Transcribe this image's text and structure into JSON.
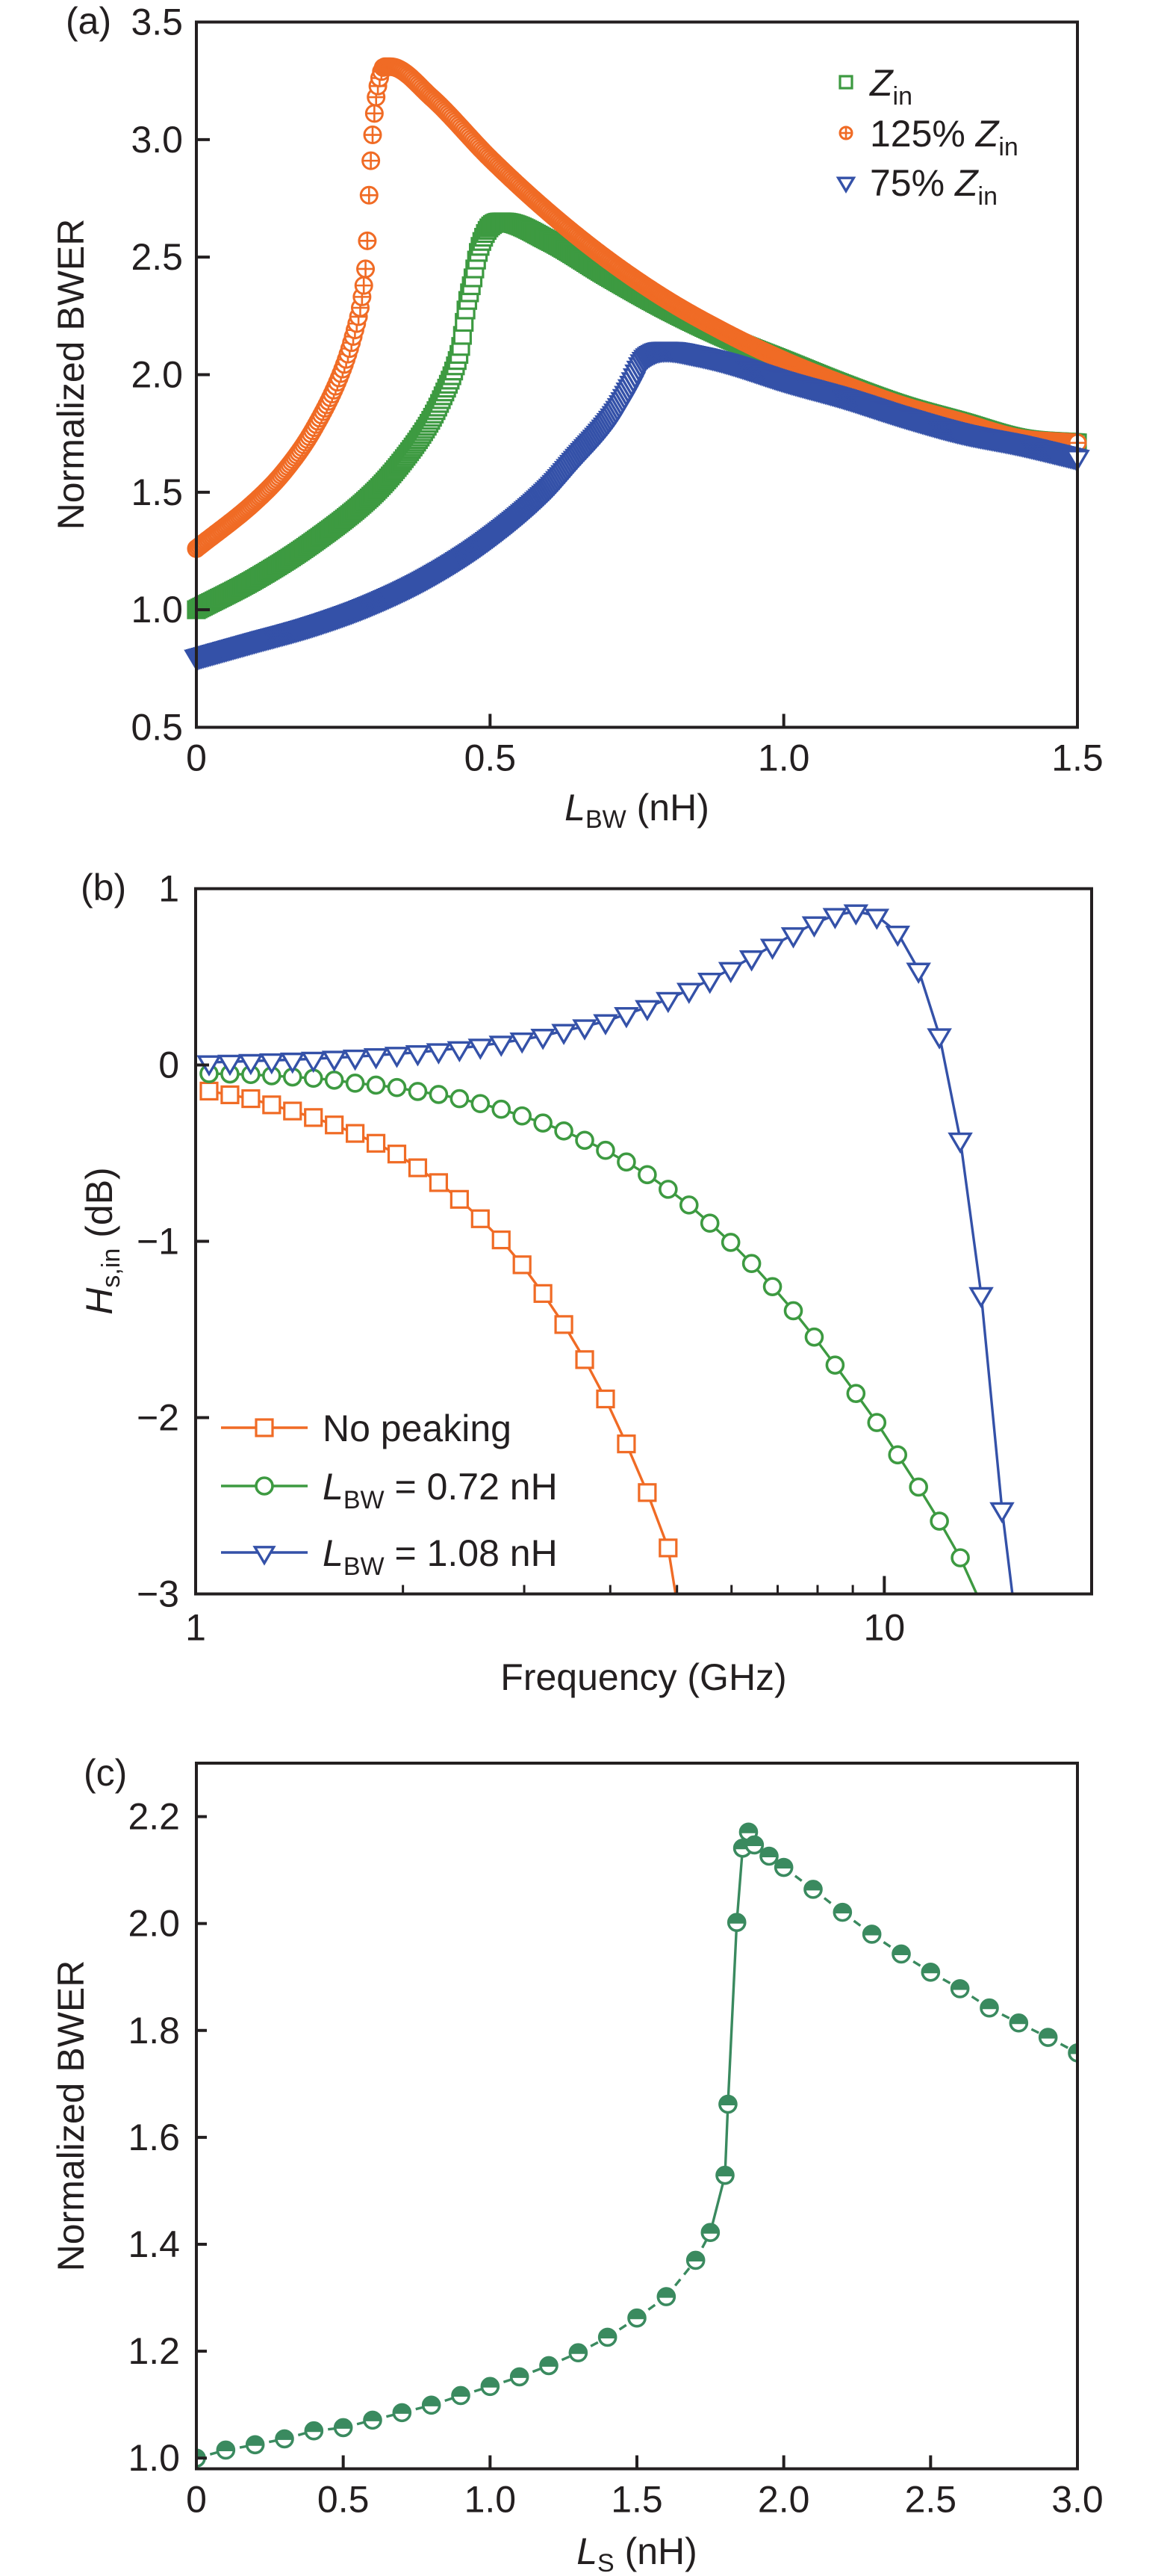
{
  "figure": {
    "panels": [
      "(a)",
      "(b)",
      "(c)"
    ]
  },
  "chart_data": [
    {
      "id": "a",
      "type": "scatter",
      "panel_label": "(a)",
      "title": "",
      "xlabel": {
        "main": "L",
        "sub": "BW",
        "unit": " (nH)"
      },
      "ylabel": "Normalized BWER",
      "xlim": [
        0,
        1.5
      ],
      "ylim": [
        0.5,
        3.5
      ],
      "xticks": [
        0,
        0.5,
        1.0,
        1.5
      ],
      "xtick_labels": [
        "0",
        "0.5",
        "1.0",
        "1.5"
      ],
      "yticks": [
        0.5,
        1.0,
        1.5,
        2.0,
        2.5,
        3.0,
        3.5
      ],
      "ytick_labels": [
        "0.5",
        "1.0",
        "1.5",
        "2.0",
        "2.5",
        "3.0",
        "3.5"
      ],
      "grid": false,
      "legend_position": "top-right",
      "series": [
        {
          "name": "Z_in",
          "legend": {
            "pre": "",
            "main": "Z",
            "sub": "in"
          },
          "marker": "square-open",
          "color": "#3d9a41",
          "x": [
            0,
            0.1,
            0.2,
            0.3,
            0.35,
            0.4,
            0.42,
            0.44,
            0.45,
            0.46,
            0.47,
            0.48,
            0.49,
            0.5,
            0.52,
            0.6,
            0.7,
            0.8,
            0.9,
            1.0,
            1.1,
            1.2,
            1.3,
            1.4,
            1.5
          ],
          "y": [
            1.0,
            1.13,
            1.29,
            1.49,
            1.63,
            1.81,
            1.91,
            2.03,
            2.12,
            2.29,
            2.4,
            2.52,
            2.59,
            2.63,
            2.65,
            2.57,
            2.42,
            2.28,
            2.16,
            2.06,
            1.96,
            1.87,
            1.8,
            1.73,
            1.71
          ]
        },
        {
          "name": "125% Z_in",
          "legend": {
            "pre": "125% ",
            "main": "Z",
            "sub": "in"
          },
          "marker": "circle-plus",
          "color": "#f06b25",
          "x": [
            0,
            0.1,
            0.15,
            0.2,
            0.25,
            0.27,
            0.28,
            0.29,
            0.295,
            0.3,
            0.305,
            0.31,
            0.32,
            0.33,
            0.4,
            0.5,
            0.6,
            0.7,
            0.8,
            0.9,
            1.0,
            1.1,
            1.2,
            1.3,
            1.4,
            1.5
          ],
          "y": [
            1.26,
            1.46,
            1.59,
            1.77,
            2.03,
            2.19,
            2.3,
            2.52,
            2.82,
            3.02,
            3.16,
            3.24,
            3.31,
            3.31,
            3.18,
            2.92,
            2.69,
            2.49,
            2.32,
            2.18,
            2.06,
            1.96,
            1.87,
            1.8,
            1.73,
            1.71
          ]
        },
        {
          "name": "75% Z_in",
          "legend": {
            "pre": "75% ",
            "main": "Z",
            "sub": "in"
          },
          "marker": "triangle-down-open",
          "color": "#3451a8",
          "x": [
            0,
            0.1,
            0.2,
            0.3,
            0.4,
            0.5,
            0.6,
            0.65,
            0.7,
            0.72,
            0.74,
            0.76,
            0.78,
            0.8,
            0.85,
            0.9,
            1.0,
            1.1,
            1.2,
            1.3,
            1.4,
            1.5
          ],
          "y": [
            0.8,
            0.87,
            0.94,
            1.03,
            1.15,
            1.31,
            1.52,
            1.66,
            1.8,
            1.87,
            1.96,
            2.06,
            2.1,
            2.11,
            2.09,
            2.06,
            1.98,
            1.91,
            1.83,
            1.76,
            1.71,
            1.65
          ]
        }
      ]
    },
    {
      "id": "b",
      "type": "line",
      "panel_label": "(b)",
      "title": "",
      "xlabel": "Frequency (GHz)",
      "ylabel": {
        "main": "H",
        "sub": "s,in",
        "unit": " (dB)"
      },
      "xscale": "log",
      "xlim": [
        1,
        20
      ],
      "ylim": [
        -3,
        1
      ],
      "xticks": [
        1,
        10
      ],
      "xtick_labels": [
        "1",
        "10"
      ],
      "xminor": [
        2,
        3,
        4,
        5,
        6,
        7,
        8,
        9,
        20
      ],
      "yticks": [
        -3,
        -2,
        -1,
        0,
        1
      ],
      "ytick_labels": [
        "−3",
        "−2",
        "−1",
        "0",
        "1"
      ],
      "grid": false,
      "legend_position": "bottom-left",
      "x_log_start": 0.0195,
      "x_log_step": 0.0303,
      "series": [
        {
          "name": "No peaking",
          "legend": {
            "main": "No peaking",
            "sub": "",
            "rest": ""
          },
          "marker": "square-open",
          "color": "#f06b25",
          "y": [
            -0.148,
            -0.169,
            -0.191,
            -0.226,
            -0.261,
            -0.298,
            -0.34,
            -0.388,
            -0.444,
            -0.505,
            -0.583,
            -0.667,
            -0.762,
            -0.872,
            -0.992,
            -1.133,
            -1.296,
            -1.472,
            -1.671,
            -1.894,
            -2.149,
            -2.425,
            -2.739
          ],
          "tail_x": 5.0
        },
        {
          "name": "L_BW = 0.72 nH",
          "legend": {
            "main": "L",
            "sub": "BW",
            "rest": " = 0.72 nH"
          },
          "marker": "circle-open",
          "color": "#3d9a41",
          "y": [
            -0.049,
            -0.051,
            -0.054,
            -0.061,
            -0.068,
            -0.075,
            -0.086,
            -0.103,
            -0.114,
            -0.128,
            -0.15,
            -0.167,
            -0.191,
            -0.219,
            -0.251,
            -0.289,
            -0.329,
            -0.374,
            -0.427,
            -0.484,
            -0.55,
            -0.622,
            -0.705,
            -0.794,
            -0.897,
            -1.006,
            -1.126,
            -1.257,
            -1.394,
            -1.543,
            -1.702,
            -1.863,
            -2.028,
            -2.211,
            -2.394,
            -2.587,
            -2.795
          ],
          "tail_x": 13.8
        },
        {
          "name": "L_BW = 1.08 nH",
          "legend": {
            "main": "L",
            "sub": "BW",
            "rest": " = 1.08 nH"
          },
          "marker": "triangle-down-open",
          "color": "#3451a8",
          "y": [
            0.015,
            0.018,
            0.022,
            0.026,
            0.03,
            0.035,
            0.041,
            0.047,
            0.055,
            0.063,
            0.072,
            0.083,
            0.095,
            0.109,
            0.126,
            0.144,
            0.165,
            0.193,
            0.219,
            0.248,
            0.288,
            0.328,
            0.374,
            0.426,
            0.483,
            0.544,
            0.61,
            0.676,
            0.741,
            0.803,
            0.85,
            0.871,
            0.846,
            0.75,
            0.54,
            0.168,
            -0.423,
            -1.3,
            -2.52
          ],
          "tail_x": 15.4
        }
      ]
    },
    {
      "id": "c",
      "type": "line",
      "panel_label": "(c)",
      "title": "",
      "xlabel": {
        "main": "L",
        "sub": "S",
        "unit": " (nH)"
      },
      "ylabel": "Normalized BWER",
      "xlim": [
        0,
        3.0
      ],
      "ylim": [
        0.98,
        2.3
      ],
      "xticks": [
        0,
        0.5,
        1.0,
        1.5,
        2.0,
        2.5,
        3.0
      ],
      "xtick_labels": [
        "0",
        "0.5",
        "1.0",
        "1.5",
        "2.0",
        "2.5",
        "3.0"
      ],
      "yticks": [
        1.0,
        1.2,
        1.4,
        1.6,
        1.8,
        2.0,
        2.2
      ],
      "ytick_labels": [
        "1.0",
        "1.2",
        "1.4",
        "1.6",
        "1.8",
        "2.0",
        "2.2"
      ],
      "grid": false,
      "legend_position": "none",
      "series": [
        {
          "name": "Normalized BWER",
          "marker": "circle-half-filled-top",
          "color": "#3a8a5f",
          "line_style": "dashed",
          "x": [
            0,
            0.1,
            0.2,
            0.3,
            0.4,
            0.5,
            0.6,
            0.7,
            0.8,
            0.9,
            1.0,
            1.1,
            1.2,
            1.3,
            1.4,
            1.5,
            1.6,
            1.7,
            1.75,
            1.8,
            1.81,
            1.84,
            1.86,
            1.88,
            1.9,
            1.95,
            2.0,
            2.1,
            2.2,
            2.3,
            2.4,
            2.5,
            2.6,
            2.7,
            2.8,
            2.9,
            3.0
          ],
          "y": [
            1.0,
            1.015,
            1.025,
            1.036,
            1.051,
            1.057,
            1.071,
            1.085,
            1.099,
            1.117,
            1.134,
            1.152,
            1.173,
            1.197,
            1.226,
            1.262,
            1.302,
            1.37,
            1.422,
            1.529,
            1.662,
            2.002,
            2.141,
            2.171,
            2.147,
            2.126,
            2.105,
            2.064,
            2.021,
            1.98,
            1.943,
            1.909,
            1.878,
            1.842,
            1.814,
            1.787,
            1.758
          ]
        }
      ]
    }
  ]
}
